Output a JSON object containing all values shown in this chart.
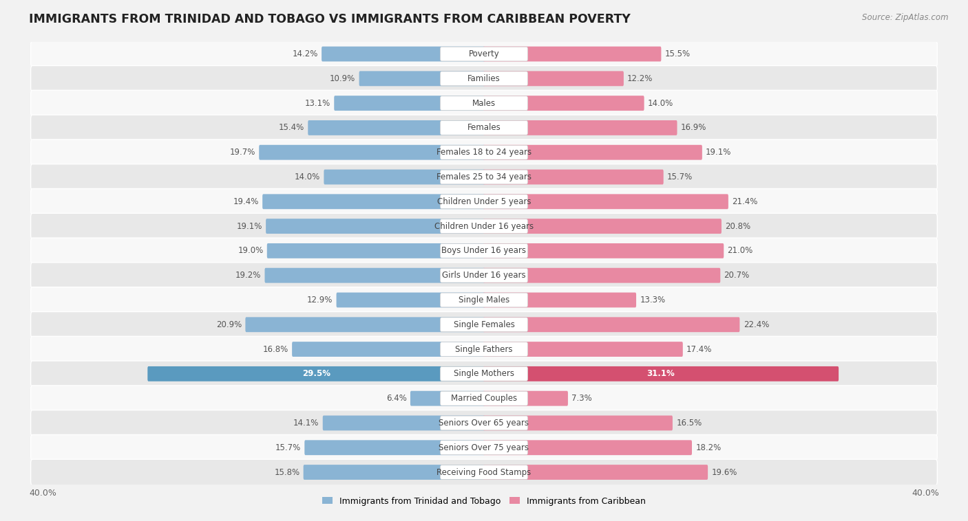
{
  "title": "IMMIGRANTS FROM TRINIDAD AND TOBAGO VS IMMIGRANTS FROM CARIBBEAN POVERTY",
  "source": "Source: ZipAtlas.com",
  "categories": [
    "Poverty",
    "Families",
    "Males",
    "Females",
    "Females 18 to 24 years",
    "Females 25 to 34 years",
    "Children Under 5 years",
    "Children Under 16 years",
    "Boys Under 16 years",
    "Girls Under 16 years",
    "Single Males",
    "Single Females",
    "Single Fathers",
    "Single Mothers",
    "Married Couples",
    "Seniors Over 65 years",
    "Seniors Over 75 years",
    "Receiving Food Stamps"
  ],
  "left_values": [
    14.2,
    10.9,
    13.1,
    15.4,
    19.7,
    14.0,
    19.4,
    19.1,
    19.0,
    19.2,
    12.9,
    20.9,
    16.8,
    29.5,
    6.4,
    14.1,
    15.7,
    15.8
  ],
  "right_values": [
    15.5,
    12.2,
    14.0,
    16.9,
    19.1,
    15.7,
    21.4,
    20.8,
    21.0,
    20.7,
    13.3,
    22.4,
    17.4,
    31.1,
    7.3,
    16.5,
    18.2,
    19.6
  ],
  "left_color": "#8ab4d4",
  "right_color": "#e889a2",
  "highlight_left_color": "#5a9abf",
  "highlight_right_color": "#d45070",
  "highlight_rows": [
    13
  ],
  "bg_color": "#f2f2f2",
  "row_bg_light": "#f8f8f8",
  "row_bg_dark": "#e8e8e8",
  "label_left": "Immigrants from Trinidad and Tobago",
  "label_right": "Immigrants from Caribbean",
  "axis_max": 40.0,
  "title_fontsize": 12.5,
  "source_fontsize": 8.5,
  "bar_label_fontsize": 8.5,
  "cat_label_fontsize": 8.5
}
